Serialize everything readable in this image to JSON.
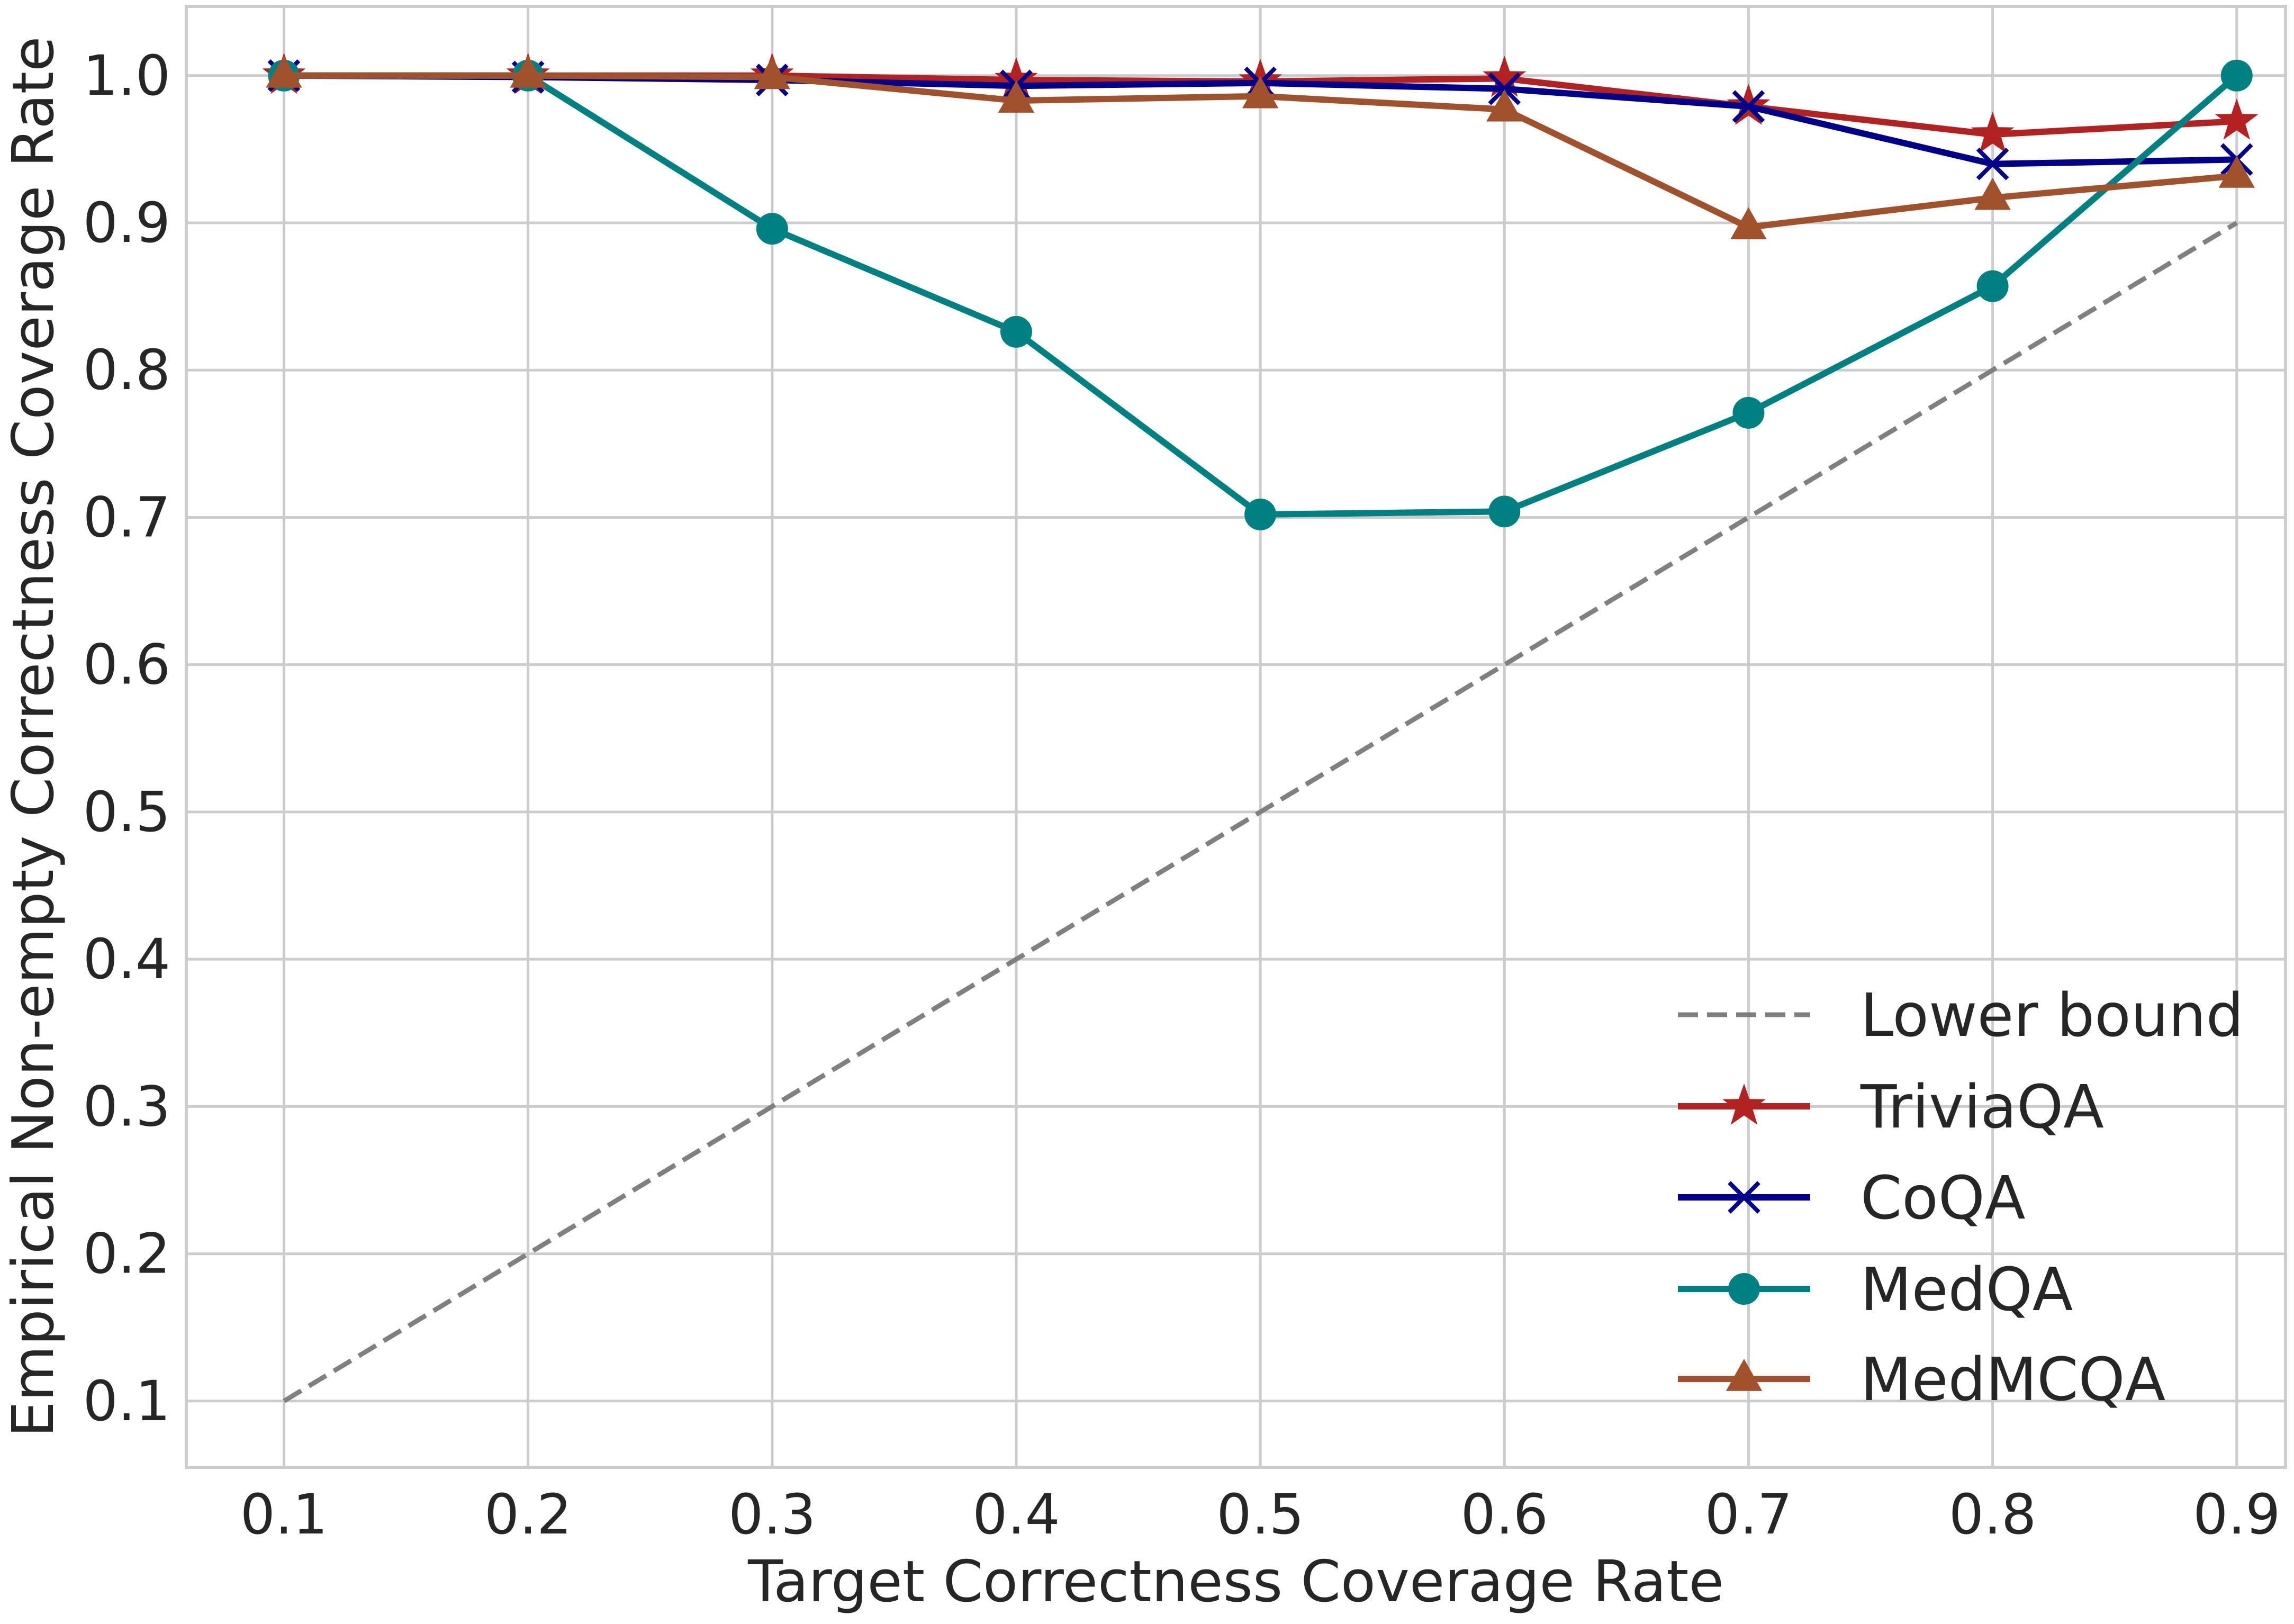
{
  "chart_data": {
    "type": "line",
    "title": "",
    "xlabel": "Target Correctness Coverage Rate",
    "ylabel": "Empirical Non-empty Correctness Coverage Rate",
    "xlim": [
      0.06,
      0.92
    ],
    "ylim": [
      0.055,
      1.047
    ],
    "xticks": [
      "0.1",
      "0.2",
      "0.3",
      "0.4",
      "0.5",
      "0.6",
      "0.7",
      "0.8",
      "0.9"
    ],
    "yticks": [
      "0.1",
      "0.2",
      "0.3",
      "0.4",
      "0.5",
      "0.6",
      "0.7",
      "0.8",
      "0.9",
      "1.0"
    ],
    "grid": true,
    "legend_position": "lower-right",
    "x": [
      0.1,
      0.2,
      0.3,
      0.4,
      0.5,
      0.6,
      0.7,
      0.8,
      0.9
    ],
    "series": [
      {
        "name": "Lower bound",
        "color": "#808080",
        "style": "dashed",
        "marker": "none",
        "values": [
          0.1,
          0.2,
          0.3,
          0.4,
          0.5,
          0.6,
          0.7,
          0.8,
          0.9
        ]
      },
      {
        "name": "TriviaQA",
        "color": "#b22222",
        "style": "solid",
        "marker": "star",
        "values": [
          1.0,
          1.0,
          1.0,
          0.997,
          0.996,
          0.998,
          0.979,
          0.96,
          0.969
        ]
      },
      {
        "name": "CoQA",
        "color": "#00008b",
        "style": "solid",
        "marker": "x",
        "values": [
          1.0,
          0.999,
          0.997,
          0.993,
          0.995,
          0.991,
          0.979,
          0.94,
          0.943
        ]
      },
      {
        "name": "MedQA",
        "color": "#008080",
        "style": "solid",
        "marker": "circle",
        "values": [
          1.0,
          1.0,
          0.896,
          0.826,
          0.702,
          0.704,
          0.771,
          0.857,
          1.0
        ]
      },
      {
        "name": "MedMCQA",
        "color": "#a0522d",
        "style": "solid",
        "marker": "triangle",
        "values": [
          1.0,
          1.0,
          0.999,
          0.983,
          0.986,
          0.977,
          0.897,
          0.917,
          0.932
        ]
      }
    ]
  }
}
